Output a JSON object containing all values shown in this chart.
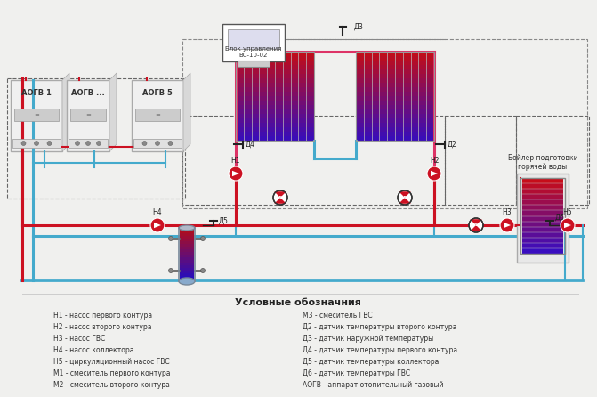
{
  "bg_color": "#f0f0ee",
  "line_red": "#cc1122",
  "line_blue": "#44aacc",
  "line_pink": "#dd3366",
  "title_box": "Блок управления\nВС-10-02",
  "boiler_label": "Бойлер подготовки\nгорячей воды",
  "legend_title": "Условные обозначния",
  "legend_left": [
    "Н1 - насос первого контура",
    "Н2 - насос второго контура",
    "Н3 - насос ГВС",
    "Н4 - насос коллектора",
    "Н5 - циркуляционный насос ГВС",
    "М1 - смеситель первого контура",
    "М2 - смеситель второго контура"
  ],
  "legend_right": [
    "М3 - смеситель ГВС",
    "Д2 - датчик температуры второго контура",
    "Д3 - датчик наружной температуры",
    "Д4 - датчик температуры первого контура",
    "Д5 - датчик температуры коллектора",
    "Д6 - датчик температуры ГВС",
    "АОГВ - аппарат отопительный газовый"
  ]
}
